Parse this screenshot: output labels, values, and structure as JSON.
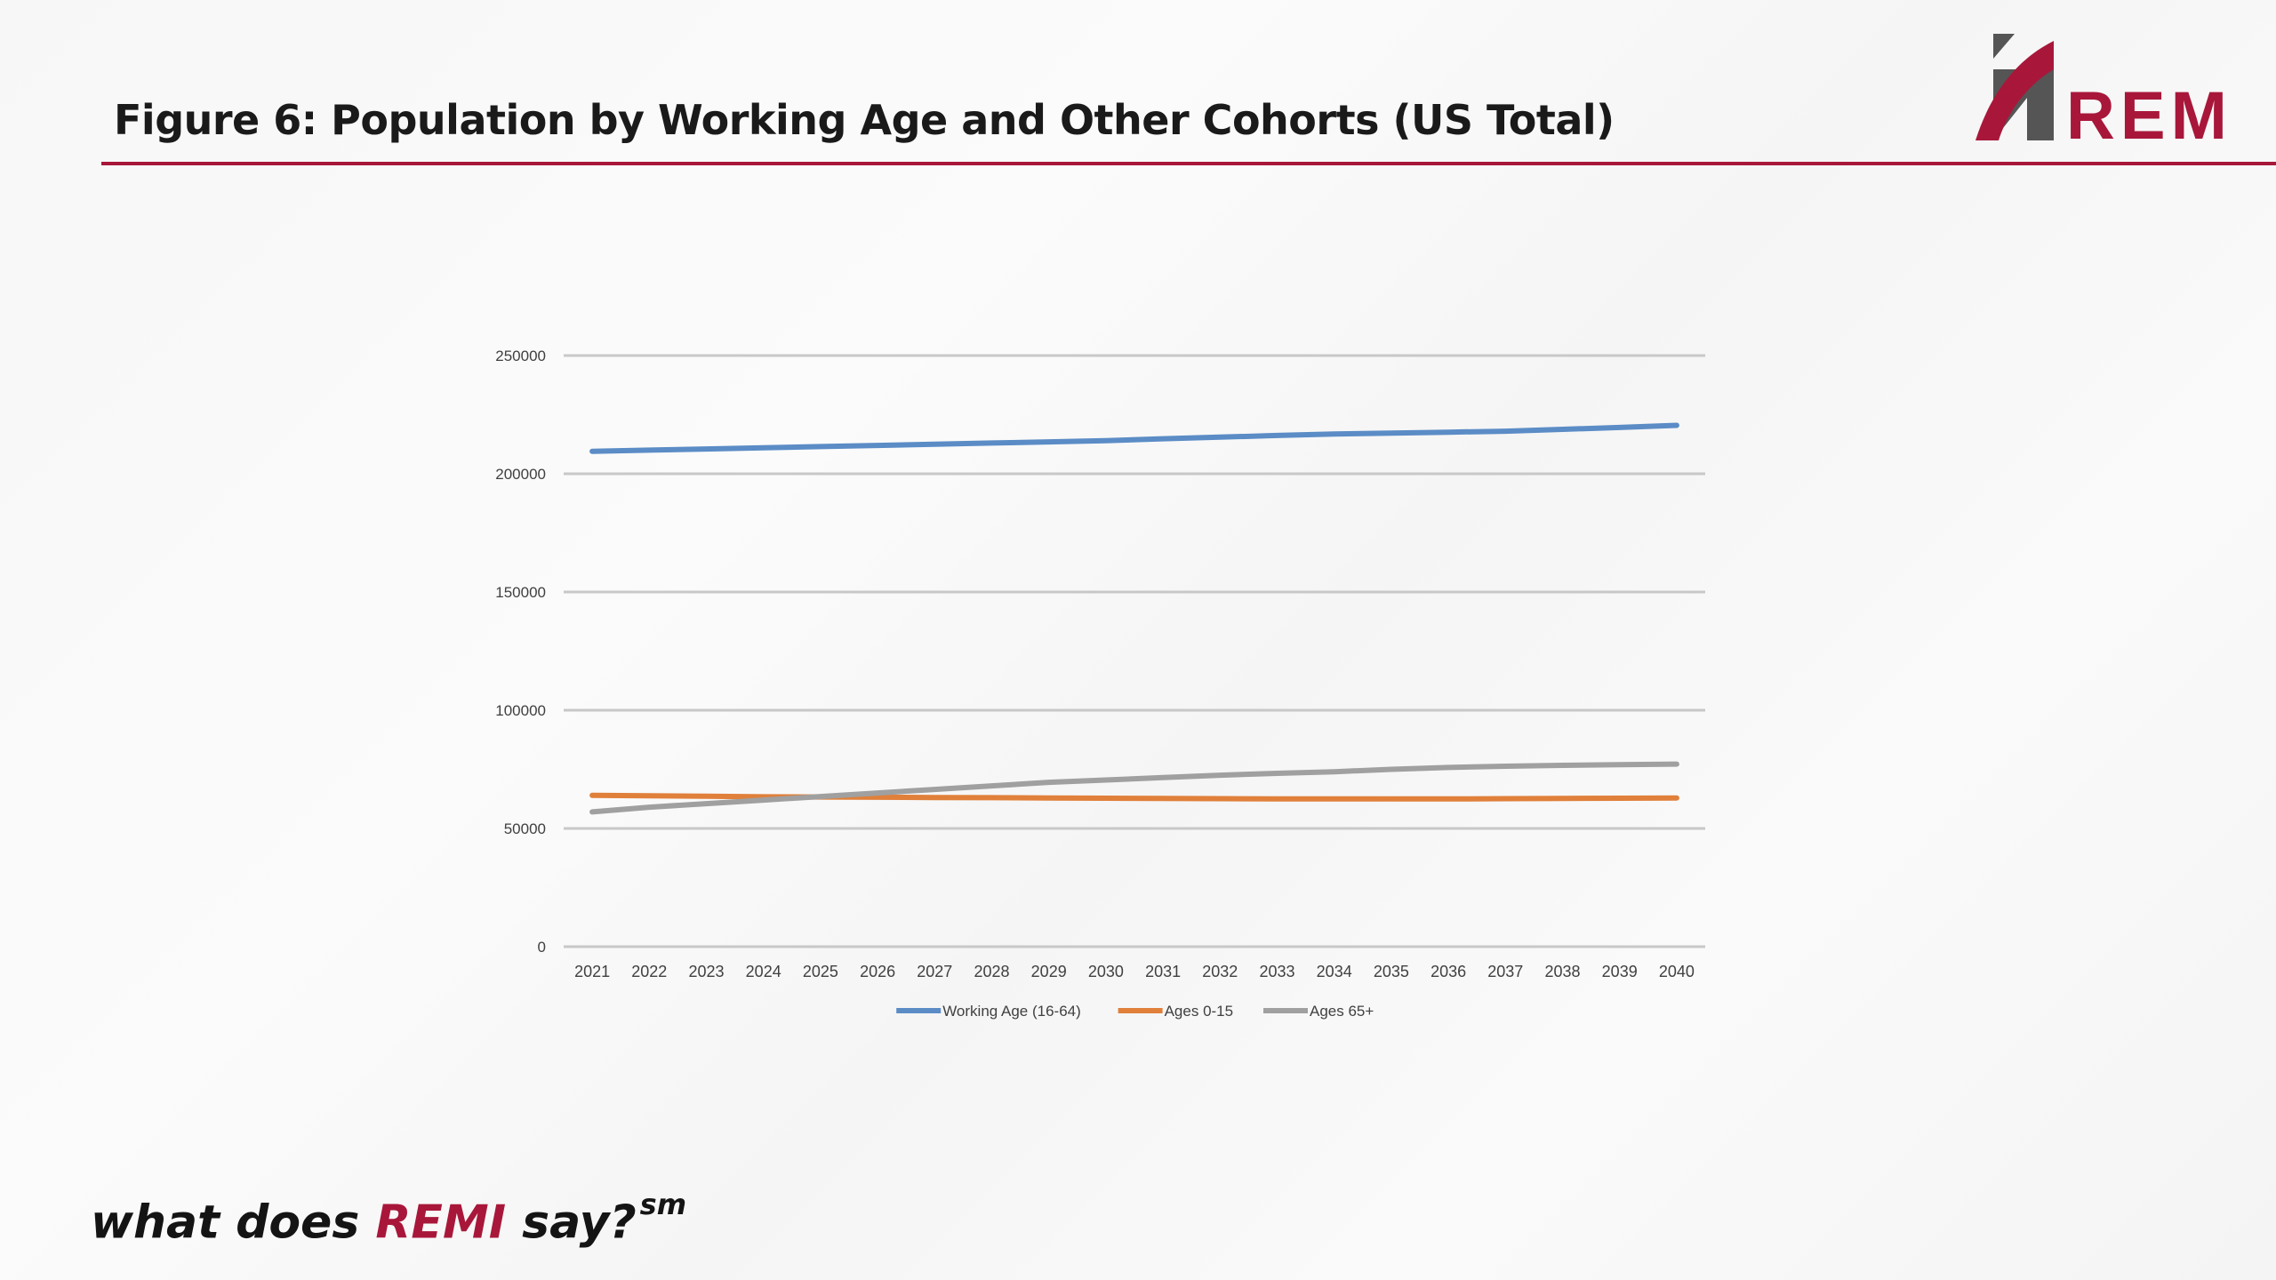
{
  "slide": {
    "title": "Figure 6: Population by Working Age and Other Cohorts (US Total)",
    "tagline_prefix": "what does ",
    "tagline_brand": "REMI",
    "tagline_suffix": " say?",
    "tagline_mark": "sm"
  },
  "logo": {
    "text": "REMI",
    "colors": {
      "red": "#a8173a",
      "gray": "#555555"
    }
  },
  "chart_data": {
    "type": "line",
    "title": "",
    "xlabel": "",
    "ylabel": "",
    "categories": [
      "2021",
      "2022",
      "2023",
      "2024",
      "2025",
      "2026",
      "2027",
      "2028",
      "2029",
      "2030",
      "2031",
      "2032",
      "2033",
      "2034",
      "2035",
      "2036",
      "2037",
      "2038",
      "2039",
      "2040"
    ],
    "ylim": [
      0,
      250000
    ],
    "yticks": [
      0,
      50000,
      100000,
      150000,
      200000,
      250000
    ],
    "grid": true,
    "legend_position": "bottom",
    "series": [
      {
        "name": "Working Age (16-64)",
        "color": "#5b8cc6",
        "values": [
          209500,
          210000,
          210500,
          211000,
          211500,
          212000,
          212500,
          213000,
          213500,
          214000,
          214800,
          215500,
          216200,
          216800,
          217200,
          217600,
          218000,
          218800,
          219600,
          220500
        ]
      },
      {
        "name": "Ages 0-15",
        "color": "#e0803b",
        "values": [
          64000,
          63800,
          63600,
          63400,
          63300,
          63200,
          63100,
          63000,
          62900,
          62800,
          62700,
          62600,
          62500,
          62500,
          62500,
          62500,
          62600,
          62700,
          62800,
          62900
        ]
      },
      {
        "name": "Ages 65+",
        "color": "#a0a0a0",
        "values": [
          57000,
          59000,
          60500,
          62000,
          63500,
          65000,
          66500,
          68000,
          69500,
          70500,
          71500,
          72500,
          73300,
          74000,
          75000,
          75800,
          76300,
          76700,
          77000,
          77200
        ]
      }
    ]
  }
}
